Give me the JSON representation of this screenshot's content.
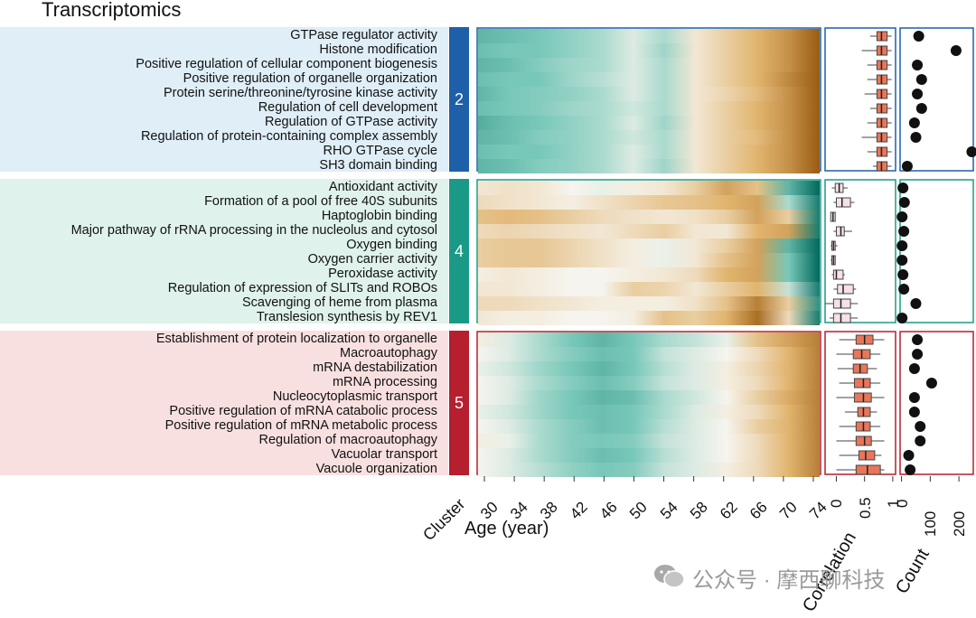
{
  "title": "Transcriptomics",
  "colors": {
    "cluster2": "#1d5fa8",
    "cluster4": "#1a9a86",
    "cluster5": "#b51f2e",
    "bg2": "#dfeef7",
    "bg4": "#dff2ec",
    "bg5": "#f8e0e0",
    "teal_dark": "#00695c",
    "brown_dark": "#9a5c12"
  },
  "x_axis_title": "Age (year)",
  "cluster_axis_label": "Cluster",
  "correlation_axis_title": "Correlation",
  "count_axis_title": "Count",
  "chart_data": [
    {
      "type": "heatmap",
      "x": [
        30,
        34,
        38,
        42,
        46,
        50,
        54,
        58,
        62,
        66,
        70,
        74
      ],
      "x_tick_labels": [
        "30",
        "34",
        "38",
        "42",
        "46",
        "50",
        "54",
        "58",
        "62",
        "66",
        "70",
        "74"
      ],
      "scale": "teal (low) to brown (high)",
      "clusters": [
        {
          "id": "2",
          "terms": [
            "GTPase regulator activity",
            "Histone modification",
            "Positive regulation of cellular component biogenesis",
            "Positive regulation of organelle organization",
            "Protein serine/threonine/tyrosine kinase activity",
            "Regulation of cell development",
            "Regulation of GTPase activity",
            "Regulation of protein-containing complex assembly",
            "RHO GTPase cycle",
            "SH3 domain binding"
          ],
          "values": [
            [
              -0.6,
              -0.55,
              -0.5,
              -0.4,
              -0.3,
              -0.1,
              -0.3,
              0.1,
              0.3,
              0.5,
              0.7,
              1.0
            ],
            [
              -0.55,
              -0.5,
              -0.5,
              -0.4,
              -0.3,
              -0.1,
              -0.35,
              0.1,
              0.3,
              0.5,
              0.7,
              1.0
            ],
            [
              -0.6,
              -0.55,
              -0.45,
              -0.35,
              -0.3,
              -0.1,
              -0.3,
              0.1,
              0.3,
              0.5,
              0.7,
              1.0
            ],
            [
              -0.55,
              -0.5,
              -0.5,
              -0.35,
              -0.25,
              -0.1,
              -0.3,
              0.1,
              0.3,
              0.5,
              0.75,
              1.0
            ],
            [
              -0.6,
              -0.5,
              -0.45,
              -0.4,
              -0.3,
              -0.1,
              -0.3,
              0.1,
              0.25,
              0.45,
              0.7,
              1.0
            ],
            [
              -0.55,
              -0.5,
              -0.45,
              -0.35,
              -0.3,
              -0.15,
              -0.3,
              0.1,
              0.3,
              0.5,
              0.7,
              1.0
            ],
            [
              -0.65,
              -0.55,
              -0.5,
              -0.4,
              -0.3,
              -0.1,
              -0.35,
              0.1,
              0.3,
              0.5,
              0.7,
              1.0
            ],
            [
              -0.6,
              -0.55,
              -0.45,
              -0.4,
              -0.3,
              -0.15,
              -0.3,
              0.1,
              0.3,
              0.45,
              0.7,
              1.0
            ],
            [
              -0.55,
              -0.5,
              -0.5,
              -0.4,
              -0.3,
              -0.1,
              -0.3,
              0.1,
              0.3,
              0.5,
              0.7,
              1.0
            ],
            [
              -0.6,
              -0.55,
              -0.45,
              -0.4,
              -0.3,
              -0.1,
              -0.35,
              0.1,
              0.3,
              0.5,
              0.7,
              1.0
            ]
          ],
          "correlation": [
            {
              "q1": 0.72,
              "median": 0.8,
              "q3": 0.9,
              "min": 0.6,
              "max": 0.98
            },
            {
              "q1": 0.72,
              "median": 0.8,
              "q3": 0.9,
              "min": 0.45,
              "max": 0.98
            },
            {
              "q1": 0.72,
              "median": 0.8,
              "q3": 0.9,
              "min": 0.55,
              "max": 0.98
            },
            {
              "q1": 0.72,
              "median": 0.8,
              "q3": 0.9,
              "min": 0.55,
              "max": 0.98
            },
            {
              "q1": 0.72,
              "median": 0.8,
              "q3": 0.9,
              "min": 0.5,
              "max": 0.98
            },
            {
              "q1": 0.72,
              "median": 0.8,
              "q3": 0.9,
              "min": 0.6,
              "max": 0.98
            },
            {
              "q1": 0.72,
              "median": 0.8,
              "q3": 0.9,
              "min": 0.55,
              "max": 0.98
            },
            {
              "q1": 0.72,
              "median": 0.8,
              "q3": 0.9,
              "min": 0.45,
              "max": 0.98
            },
            {
              "q1": 0.72,
              "median": 0.8,
              "q3": 0.9,
              "min": 0.55,
              "max": 0.98
            },
            {
              "q1": 0.72,
              "median": 0.8,
              "q3": 0.9,
              "min": 0.65,
              "max": 0.98
            }
          ],
          "count": [
            60,
            190,
            55,
            70,
            55,
            70,
            45,
            50,
            245,
            20
          ]
        },
        {
          "id": "4",
          "terms": [
            "Antioxidant activity",
            "Formation of a pool of free 40S subunits",
            "Haptoglobin binding",
            "Major pathway of rRNA processing in the nucleolus and cytosol",
            "Oxygen binding",
            "Oxygen carrier activity",
            "Peroxidase activity",
            "Regulation of expression of SLITs and ROBOs",
            "Scavenging of heme from plasma",
            "Translesion synthesis by REV1"
          ],
          "values": [
            [
              0.1,
              0.15,
              0.1,
              0.0,
              -0.05,
              0.05,
              0.1,
              0.3,
              0.6,
              0.4,
              -0.6,
              -1.0
            ],
            [
              0.2,
              0.15,
              0.1,
              0.05,
              0.15,
              0.25,
              0.35,
              0.4,
              0.5,
              0.6,
              -0.3,
              -0.9
            ],
            [
              0.4,
              0.45,
              0.4,
              0.3,
              0.2,
              0.15,
              0.1,
              0.15,
              0.3,
              0.6,
              0.3,
              -0.9
            ],
            [
              0.2,
              0.25,
              0.2,
              0.15,
              0.1,
              0.2,
              0.3,
              0.1,
              0.1,
              0.5,
              0.6,
              -0.9
            ],
            [
              0.3,
              0.35,
              0.35,
              0.25,
              0.15,
              0.05,
              -0.05,
              0.1,
              0.3,
              0.6,
              -0.6,
              -1.0
            ],
            [
              0.3,
              0.35,
              0.35,
              0.25,
              0.15,
              0.05,
              -0.05,
              0.1,
              0.4,
              0.6,
              -0.5,
              -1.0
            ],
            [
              0.05,
              0.1,
              0.05,
              0.0,
              0.0,
              0.05,
              0.1,
              0.2,
              0.5,
              0.6,
              -0.5,
              -1.0
            ],
            [
              0.1,
              0.1,
              0.05,
              0.0,
              0.0,
              0.3,
              0.25,
              0.1,
              0.3,
              0.5,
              -0.2,
              -0.9
            ],
            [
              0.2,
              0.2,
              0.15,
              0.1,
              0.05,
              0.05,
              0.05,
              0.15,
              0.4,
              0.8,
              0.3,
              -0.8
            ],
            [
              0.1,
              0.05,
              0.05,
              0.0,
              0.0,
              0.05,
              0.4,
              0.3,
              0.5,
              0.9,
              0.2,
              -0.9
            ]
          ],
          "correlation": [
            {
              "q1": -0.02,
              "median": 0.05,
              "q3": 0.12,
              "min": -0.08,
              "max": 0.2
            },
            {
              "q1": 0.0,
              "median": 0.1,
              "q3": 0.25,
              "min": -0.05,
              "max": 0.32
            },
            {
              "q1": -0.1,
              "median": -0.06,
              "q3": -0.02,
              "min": -0.1,
              "max": -0.02
            },
            {
              "q1": 0.0,
              "median": 0.08,
              "q3": 0.14,
              "min": -0.05,
              "max": 0.28
            },
            {
              "q1": -0.08,
              "median": -0.05,
              "q3": -0.02,
              "min": -0.1,
              "max": 0.02
            },
            {
              "q1": -0.08,
              "median": -0.05,
              "q3": -0.02,
              "min": -0.1,
              "max": -0.02
            },
            {
              "q1": -0.05,
              "median": 0.0,
              "q3": 0.12,
              "min": -0.08,
              "max": 0.15
            },
            {
              "q1": 0.02,
              "median": 0.12,
              "q3": 0.3,
              "min": -0.05,
              "max": 0.35
            },
            {
              "q1": -0.05,
              "median": 0.08,
              "q3": 0.25,
              "min": -0.2,
              "max": 0.38
            },
            {
              "q1": -0.05,
              "median": 0.08,
              "q3": 0.25,
              "min": -0.12,
              "max": 0.38
            }
          ],
          "count": [
            5,
            10,
            2,
            8,
            2,
            2,
            5,
            8,
            50,
            2
          ]
        },
        {
          "id": "5",
          "terms": [
            "Establishment of protein localization to organelle",
            "Macroautophagy",
            "mRNA destabilization",
            "mRNA processing",
            "Nucleocytoplasmic transport",
            "Positive regulation of mRNA catabolic process",
            "Positive regulation of mRNA metabolic process",
            "Regulation of macroautophagy",
            "Vacuolar transport",
            "Vacuole organization"
          ],
          "values": [
            [
              0.05,
              -0.1,
              -0.3,
              -0.5,
              -0.6,
              -0.5,
              -0.3,
              -0.2,
              -0.05,
              0.4,
              0.6,
              0.8
            ],
            [
              0.0,
              -0.1,
              -0.3,
              -0.45,
              -0.55,
              -0.5,
              -0.2,
              -0.1,
              0.0,
              0.2,
              0.5,
              0.8
            ],
            [
              -0.05,
              -0.15,
              -0.35,
              -0.5,
              -0.6,
              -0.5,
              -0.25,
              -0.1,
              0.05,
              0.25,
              0.5,
              0.8
            ],
            [
              0.0,
              -0.1,
              -0.3,
              -0.45,
              -0.55,
              -0.45,
              -0.2,
              -0.1,
              0.05,
              0.2,
              0.5,
              0.8
            ],
            [
              0.0,
              -0.1,
              -0.35,
              -0.5,
              -0.6,
              -0.55,
              -0.3,
              -0.15,
              0.0,
              0.3,
              0.55,
              0.8
            ],
            [
              -0.05,
              -0.15,
              -0.35,
              -0.5,
              -0.55,
              -0.5,
              -0.3,
              -0.1,
              0.05,
              0.2,
              0.5,
              0.8
            ],
            [
              0.0,
              -0.1,
              -0.3,
              -0.45,
              -0.55,
              -0.5,
              -0.25,
              -0.1,
              0.0,
              0.3,
              0.5,
              0.8
            ],
            [
              0.05,
              -0.05,
              -0.3,
              -0.45,
              -0.5,
              -0.45,
              -0.2,
              -0.1,
              0.0,
              0.2,
              0.5,
              0.8
            ],
            [
              0.0,
              -0.1,
              -0.3,
              -0.45,
              -0.55,
              -0.5,
              -0.25,
              -0.1,
              0.0,
              0.2,
              0.5,
              0.8
            ],
            [
              0.0,
              -0.1,
              -0.25,
              -0.4,
              -0.5,
              -0.45,
              -0.2,
              -0.1,
              0.05,
              0.2,
              0.5,
              0.8
            ]
          ],
          "correlation": [
            {
              "q1": 0.35,
              "median": 0.5,
              "q3": 0.65,
              "min": 0.05,
              "max": 0.85
            },
            {
              "q1": 0.3,
              "median": 0.45,
              "q3": 0.6,
              "min": 0.0,
              "max": 0.78
            },
            {
              "q1": 0.3,
              "median": 0.42,
              "q3": 0.55,
              "min": 0.02,
              "max": 0.72
            },
            {
              "q1": 0.32,
              "median": 0.48,
              "q3": 0.6,
              "min": 0.05,
              "max": 0.78
            },
            {
              "q1": 0.32,
              "median": 0.48,
              "q3": 0.62,
              "min": 0.0,
              "max": 0.85
            },
            {
              "q1": 0.38,
              "median": 0.48,
              "q3": 0.6,
              "min": 0.15,
              "max": 0.72
            },
            {
              "q1": 0.35,
              "median": 0.48,
              "q3": 0.6,
              "min": 0.05,
              "max": 0.78
            },
            {
              "q1": 0.35,
              "median": 0.5,
              "q3": 0.62,
              "min": 0.0,
              "max": 0.85
            },
            {
              "q1": 0.4,
              "median": 0.52,
              "q3": 0.68,
              "min": 0.05,
              "max": 0.8
            },
            {
              "q1": 0.35,
              "median": 0.55,
              "q3": 0.78,
              "min": 0.0,
              "max": 0.85
            }
          ],
          "count": [
            55,
            55,
            45,
            105,
            45,
            45,
            65,
            65,
            25,
            30
          ]
        }
      ]
    },
    {
      "type": "box",
      "axis_title": "Correlation",
      "x_tick_labels": [
        "0",
        "0.5",
        "1"
      ],
      "xlim": [
        -0.2,
        1.05
      ]
    },
    {
      "type": "scatter",
      "axis_title": "Count",
      "x_tick_labels": [
        "0",
        "100",
        "200"
      ],
      "xlim": [
        -5,
        250
      ]
    }
  ],
  "watermark": {
    "text": "公众号 · 摩西聊科技"
  }
}
